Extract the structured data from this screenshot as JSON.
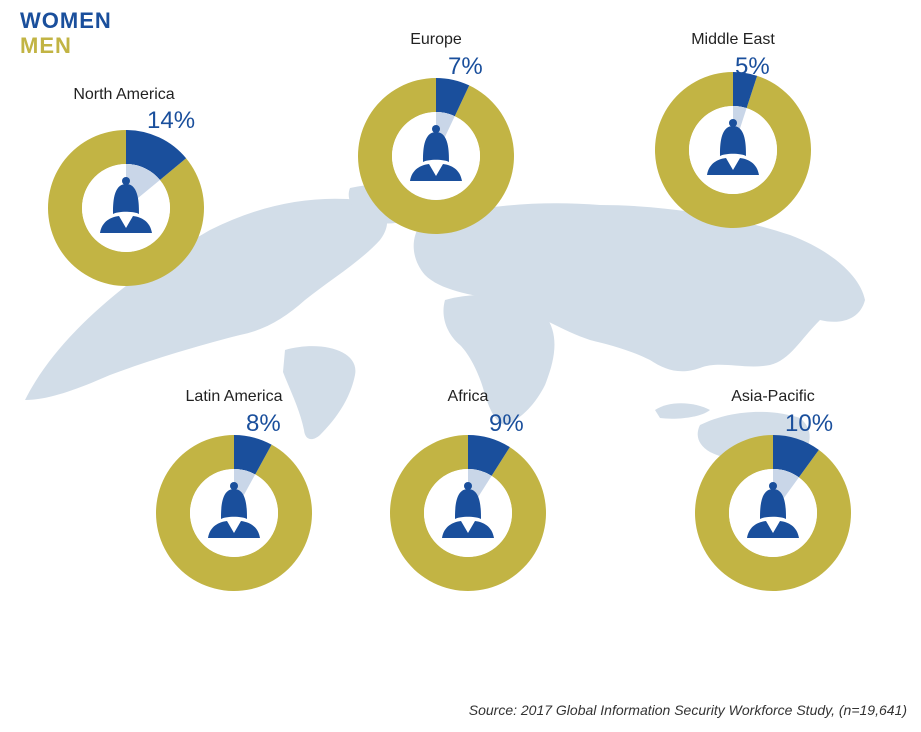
{
  "legend": {
    "women": "WOMEN",
    "men": "MEN"
  },
  "colors": {
    "women": "#1a4f9c",
    "men": "#c2b444",
    "inner_women": "#c9d6e8",
    "inner_men": "#ffffff",
    "map": "#d2dde8"
  },
  "chart_data": {
    "type": "pie",
    "title": "",
    "series": [
      {
        "name": "WOMEN",
        "values": [
          14,
          7,
          5,
          8,
          9,
          10
        ]
      },
      {
        "name": "MEN",
        "values": [
          86,
          93,
          95,
          92,
          91,
          90
        ]
      }
    ],
    "categories": [
      "North America",
      "Europe",
      "Middle East",
      "Latin America",
      "Africa",
      "Asia-Pacific"
    ],
    "regions": [
      {
        "name": "North America",
        "women_pct": 14,
        "label": "14%"
      },
      {
        "name": "Europe",
        "women_pct": 7,
        "label": "7%"
      },
      {
        "name": "Middle East",
        "women_pct": 5,
        "label": "5%"
      },
      {
        "name": "Latin America",
        "women_pct": 8,
        "label": "8%"
      },
      {
        "name": "Africa",
        "women_pct": 9,
        "label": "9%"
      },
      {
        "name": "Asia-Pacific",
        "women_pct": 10,
        "label": "10%"
      }
    ]
  },
  "source": "Source: 2017 Global Information Security Workforce Study, (n=19,641)"
}
